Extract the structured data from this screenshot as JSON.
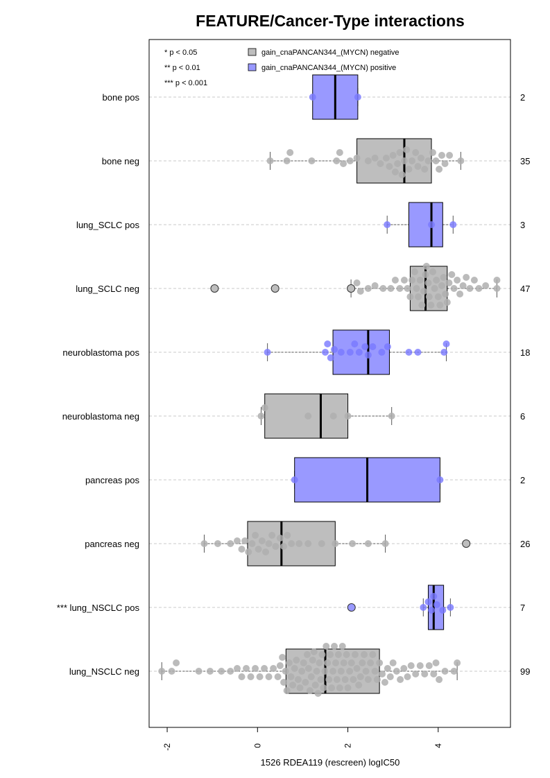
{
  "chart_data": {
    "type": "box",
    "orientation": "horizontal",
    "title": "FEATURE/Cancer-Type interactions",
    "xlabel": "1526 RDEA119 (rescreen) logIC50",
    "ylabel": "",
    "xlim": [
      -2.4,
      5.6
    ],
    "xticks": [
      "-2",
      "0",
      "2",
      "4"
    ],
    "grid": "dashed horizontal guides",
    "legend_position": "top",
    "significance_legend": [
      "* p < 0.05",
      "** p < 0.01",
      "*** p < 0.001"
    ],
    "series": [
      {
        "name": "gain_cnaPANCAN344_(MYCN) negative",
        "color": "#bebebe"
      },
      {
        "name": "gain_cnaPANCAN344_(MYCN) positive",
        "color": "#9999ff"
      }
    ],
    "groups": [
      {
        "label": "bone pos",
        "n": "2",
        "positive": true,
        "box": {
          "lw": 1.72,
          "q1": 1.22,
          "median": 1.72,
          "q3": 2.22,
          "uw": 2.22
        },
        "points": [
          1.22,
          2.22
        ],
        "outliers": []
      },
      {
        "label": "bone neg",
        "n": "35",
        "positive": false,
        "box": {
          "lw": 0.28,
          "q1": 2.2,
          "median": 3.25,
          "q3": 3.85,
          "uw": 4.5
        },
        "points": [
          0.28,
          0.65,
          0.72,
          1.2,
          1.75,
          1.82,
          1.9,
          2.05,
          2.2,
          2.45,
          2.6,
          2.72,
          2.85,
          2.92,
          3.0,
          3.05,
          3.1,
          3.15,
          3.2,
          3.25,
          3.3,
          3.35,
          3.42,
          3.5,
          3.55,
          3.62,
          3.7,
          3.78,
          3.88,
          3.95,
          4.02,
          4.08,
          4.15,
          4.25,
          4.5
        ],
        "outliers": []
      },
      {
        "label": "lung_SCLC pos",
        "n": "3",
        "positive": true,
        "box": {
          "lw": 2.87,
          "q1": 3.35,
          "median": 3.85,
          "q3": 4.1,
          "uw": 4.33
        },
        "points": [
          2.87,
          3.85,
          4.33
        ],
        "outliers": []
      },
      {
        "label": "lung_SCLC neg",
        "n": "47",
        "positive": false,
        "box": {
          "lw": 2.07,
          "q1": 3.38,
          "median": 3.72,
          "q3": 4.2,
          "uw": 5.3
        },
        "points": [
          2.07,
          2.2,
          2.28,
          2.45,
          2.6,
          2.78,
          2.95,
          3.05,
          3.15,
          3.25,
          3.32,
          3.38,
          3.42,
          3.48,
          3.52,
          3.56,
          3.6,
          3.64,
          3.68,
          3.72,
          3.74,
          3.78,
          3.8,
          3.84,
          3.88,
          3.92,
          3.96,
          4.0,
          4.04,
          4.08,
          4.12,
          4.16,
          4.2,
          4.24,
          4.3,
          4.35,
          4.42,
          4.48,
          4.55,
          4.62,
          4.7,
          4.8,
          4.9,
          5.05,
          5.3,
          5.3
        ],
        "outliers": [
          -0.95,
          0.39,
          2.07
        ]
      },
      {
        "label": "neuroblastoma pos",
        "n": "18",
        "positive": true,
        "box": {
          "lw": 0.22,
          "q1": 1.67,
          "median": 2.45,
          "q3": 2.92,
          "uw": 4.18
        },
        "points": [
          0.22,
          1.5,
          1.55,
          1.62,
          1.7,
          1.85,
          2.05,
          2.15,
          2.25,
          2.38,
          2.45,
          2.55,
          2.75,
          2.88,
          3.35,
          3.55,
          4.13,
          4.18
        ],
        "outliers": []
      },
      {
        "label": "neuroblastoma neg",
        "n": "6",
        "positive": false,
        "box": {
          "lw": 0.08,
          "q1": 0.16,
          "median": 1.4,
          "q3": 2.0,
          "uw": 2.97
        },
        "points": [
          0.08,
          0.16,
          1.12,
          1.68,
          2.0,
          2.97
        ],
        "outliers": []
      },
      {
        "label": "pancreas pos",
        "n": "2",
        "positive": true,
        "box": {
          "lw": 0.82,
          "q1": 0.82,
          "median": 2.43,
          "q3": 4.04,
          "uw": 4.04
        },
        "points": [
          0.82,
          4.04
        ],
        "outliers": []
      },
      {
        "label": "pancreas neg",
        "n": "26",
        "positive": false,
        "box": {
          "lw": -1.18,
          "q1": -0.22,
          "median": 0.53,
          "q3": 1.72,
          "uw": 2.83
        },
        "points": [
          -1.18,
          -0.88,
          -0.6,
          -0.45,
          -0.35,
          -0.28,
          -0.2,
          -0.12,
          -0.05,
          0.02,
          0.1,
          0.18,
          0.25,
          0.32,
          0.4,
          0.5,
          0.58,
          0.66,
          0.75,
          0.92,
          1.12,
          1.42,
          1.72,
          2.1,
          2.45,
          2.83
        ],
        "outliers": [
          4.62
        ]
      },
      {
        "label": "*** lung_NSCLC pos",
        "n": "7",
        "positive": true,
        "box": {
          "lw": 3.67,
          "q1": 3.78,
          "median": 3.9,
          "q3": 4.12,
          "uw": 4.27
        },
        "points": [
          3.67,
          3.78,
          3.85,
          3.9,
          3.97,
          4.1,
          4.27
        ],
        "outliers": [
          2.08
        ]
      },
      {
        "label": "lung_NSCLC neg",
        "n": "99",
        "positive": false,
        "box": {
          "lw": -2.12,
          "q1": 0.63,
          "median": 1.5,
          "q3": 2.7,
          "uw": 4.42
        },
        "points": [
          -2.12,
          -1.9,
          -1.8,
          -1.3,
          -1.05,
          -0.8,
          -0.6,
          -0.45,
          -0.35,
          -0.25,
          -0.15,
          -0.05,
          0.05,
          0.15,
          0.25,
          0.35,
          0.45,
          0.5,
          0.55,
          0.58,
          0.62,
          0.65,
          0.7,
          0.74,
          0.78,
          0.82,
          0.86,
          0.9,
          0.94,
          0.98,
          1.02,
          1.06,
          1.1,
          1.13,
          1.16,
          1.19,
          1.22,
          1.25,
          1.28,
          1.31,
          1.34,
          1.37,
          1.4,
          1.43,
          1.46,
          1.49,
          1.52,
          1.55,
          1.58,
          1.61,
          1.64,
          1.67,
          1.7,
          1.73,
          1.76,
          1.79,
          1.82,
          1.85,
          1.88,
          1.91,
          1.94,
          1.97,
          2.0,
          2.04,
          2.08,
          2.12,
          2.16,
          2.2,
          2.24,
          2.28,
          2.32,
          2.36,
          2.4,
          2.45,
          2.5,
          2.55,
          2.6,
          2.65,
          2.7,
          2.76,
          2.82,
          2.88,
          2.94,
          3.0,
          3.08,
          3.16,
          3.24,
          3.32,
          3.4,
          3.5,
          3.6,
          3.7,
          3.8,
          3.9,
          3.95,
          4.02,
          4.15,
          4.35,
          4.42
        ],
        "outliers": []
      }
    ]
  }
}
